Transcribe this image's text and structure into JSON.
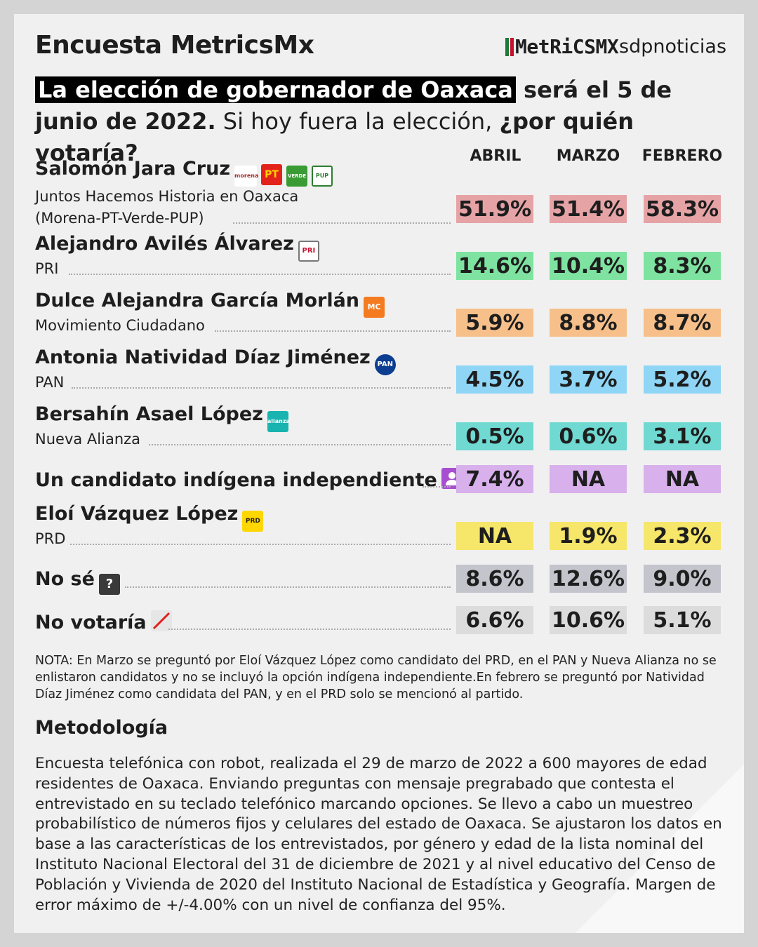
{
  "header": {
    "title": "Encuesta MetricsMx",
    "logo_metrics": "MetRiCSMX",
    "logo_sdp": "sdpnoticias"
  },
  "question": {
    "highlight": "La elección de gobernador de Oaxaca",
    "bold1": " será el 5 de junio de 2022.",
    "normal": " Si hoy fuera la elección, ",
    "bold2": "¿por quién votaría?"
  },
  "colors": {
    "morena": "#e6a3a6",
    "pri": "#7ee3a0",
    "mc": "#f7c08a",
    "pan": "#8fd5f5",
    "alianza": "#6fd9d2",
    "indigena": "#d7b0ec",
    "prd": "#f6e66a",
    "nose": "#c4c4cc",
    "novotaria": "#dcdcdc"
  },
  "chart_data": {
    "type": "table",
    "title": "Encuesta MetricsMx",
    "columns": [
      "ABRIL",
      "MARZO",
      "FEBRERO"
    ],
    "rows": [
      {
        "name": "Salomón Jara Cruz",
        "sub": "Juntos Hacemos Historia en Oaxaca (Morena-PT-Verde-PUP)",
        "icons": [
          "morena",
          "PT",
          "VERDE",
          "PUP"
        ],
        "values": [
          "51.9%",
          "51.4%",
          "58.3%"
        ],
        "color": "#e6a3a6"
      },
      {
        "name": "Alejandro Avilés Álvarez",
        "sub": "PRI",
        "icons": [
          "PRI"
        ],
        "values": [
          "14.6%",
          "10.4%",
          "8.3%"
        ],
        "color": "#7ee3a0"
      },
      {
        "name": "Dulce Alejandra García Morlán",
        "sub": "Movimiento Ciudadano",
        "icons": [
          "MC"
        ],
        "values": [
          "5.9%",
          "8.8%",
          "8.7%"
        ],
        "color": "#f7c08a"
      },
      {
        "name": "Antonia Natividad Díaz Jiménez",
        "sub": "PAN",
        "icons": [
          "PAN"
        ],
        "values": [
          "4.5%",
          "3.7%",
          "5.2%"
        ],
        "color": "#8fd5f5"
      },
      {
        "name": "Bersahín Asael López",
        "sub": "Nueva Alianza",
        "icons": [
          "alianza"
        ],
        "values": [
          "0.5%",
          "0.6%",
          "3.1%"
        ],
        "color": "#6fd9d2"
      },
      {
        "name": "Un candidato indígena independiente",
        "sub": "",
        "icons": [
          "person"
        ],
        "values": [
          "7.4%",
          "NA",
          "NA"
        ],
        "color": "#d7b0ec"
      },
      {
        "name": "Eloí Vázquez López",
        "sub": "PRD",
        "icons": [
          "PRD"
        ],
        "values": [
          "NA",
          "1.9%",
          "2.3%"
        ],
        "color": "#f6e66a"
      },
      {
        "name": "No sé",
        "sub": "",
        "icons": [
          "?"
        ],
        "values": [
          "8.6%",
          "12.6%",
          "9.0%"
        ],
        "color": "#c4c4cc"
      },
      {
        "name": "No votaría",
        "sub": "",
        "icons": [
          "slash"
        ],
        "values": [
          "6.6%",
          "10.6%",
          "5.1%"
        ],
        "color": "#dcdcdc"
      }
    ]
  },
  "nota": "NOTA: En Marzo se preguntó por Eloí Vázquez López como candidato del PRD, en el PAN y Nueva Alianza no se enlistaron candidatos y no se incluyó la opción indígena independiente.En febrero se preguntó por Natividad Díaz Jiménez como candidata del PAN, y en el PRD solo se mencionó al partido.",
  "metodologia": {
    "heading": "Metodología",
    "text": "Encuesta telefónica con robot, realizada el 29 de marzo de 2022 a 600 mayores de edad residentes de Oaxaca. Enviando preguntas con mensaje pregrabado que contesta el entrevistado en su teclado telefónico marcando opciones. Se llevo a cabo un muestreo probabilístico de números fijos y celulares del estado de Oaxaca. Se ajustaron los datos en base a las características de los entrevistados, por género y edad de la lista nominal del Instituto Nacional Electoral del 31 de diciembre de 2021 y al nivel educativo del Censo de Población y Vivienda de 2020 del Instituto Nacional de Estadística y Geografía. Margen de error máximo de +/-4.00% con un nivel de confianza del 95%."
  }
}
